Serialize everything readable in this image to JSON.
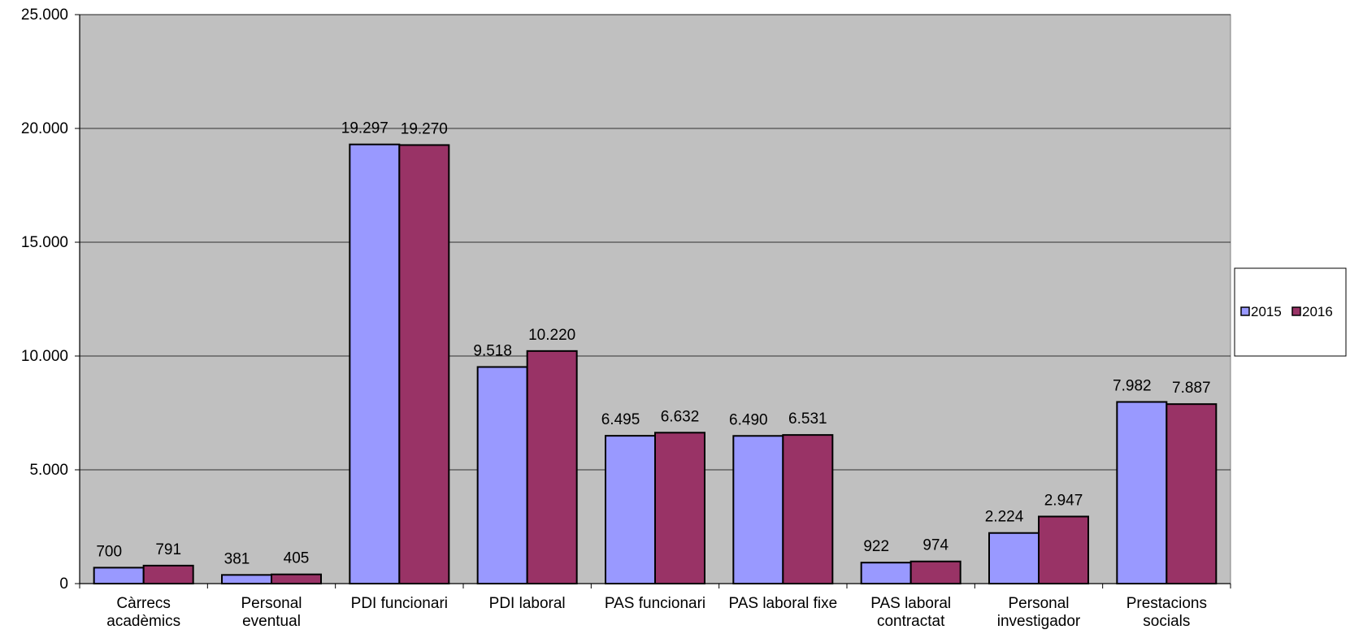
{
  "chart_data": {
    "type": "bar",
    "title": "",
    "xlabel": "",
    "ylabel": "",
    "categories": [
      [
        "Càrrecs",
        "acadèmics"
      ],
      [
        "Personal",
        "eventual"
      ],
      [
        "PDI funcionari"
      ],
      [
        "PDI laboral"
      ],
      [
        "PAS funcionari"
      ],
      [
        "PAS laboral fixe"
      ],
      [
        "PAS laboral",
        "contractat"
      ],
      [
        "Personal",
        "investigador"
      ],
      [
        "Prestacions",
        "socials"
      ]
    ],
    "series": [
      {
        "name": "2015",
        "color": "#9999FF",
        "values": [
          700,
          381,
          19297,
          9518,
          6495,
          6490,
          922,
          2224,
          7982
        ],
        "labels": [
          "700",
          "381",
          "19.297",
          "9.518",
          "6.495",
          "6.490",
          "922",
          "2.224",
          "7.982"
        ]
      },
      {
        "name": "2016",
        "color": "#993366",
        "values": [
          791,
          405,
          19270,
          10220,
          6632,
          6531,
          974,
          2947,
          7887
        ],
        "labels": [
          "791",
          "405",
          "19.270",
          "10.220",
          "6.632",
          "6.531",
          "974",
          "2.947",
          "7.887"
        ]
      }
    ],
    "ylim": [
      0,
      25000
    ],
    "yticks": [
      0,
      5000,
      10000,
      15000,
      20000,
      25000
    ],
    "ytick_labels": [
      "0",
      "5.000",
      "10.000",
      "15.000",
      "20.000",
      "25.000"
    ],
    "grid": true,
    "plot_background": "#C0C0C0",
    "legend_position": "right"
  }
}
